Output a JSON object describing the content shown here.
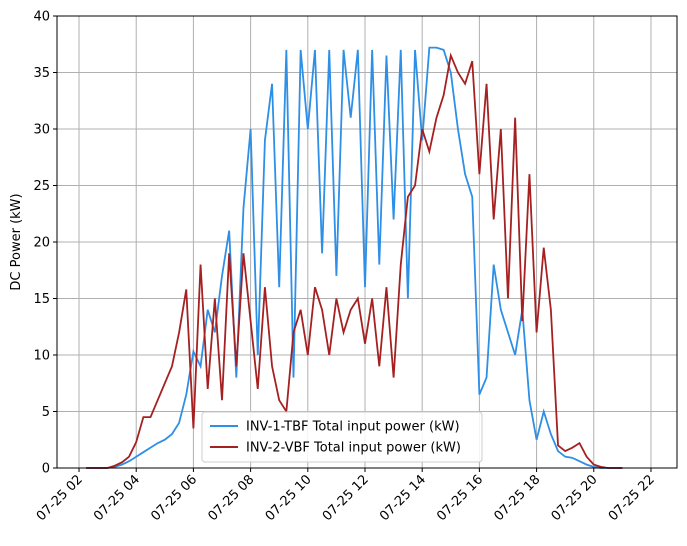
{
  "chart_data": {
    "type": "line",
    "ylabel": "DC Power (kW)",
    "x": [
      2.25,
      2.5,
      2.75,
      3,
      3.25,
      3.5,
      3.75,
      4,
      4.25,
      4.5,
      4.75,
      5,
      5.25,
      5.5,
      5.75,
      6,
      6.25,
      6.5,
      6.75,
      7,
      7.25,
      7.5,
      7.75,
      8,
      8.25,
      8.5,
      8.75,
      9,
      9.25,
      9.5,
      9.75,
      10,
      10.25,
      10.5,
      10.75,
      11,
      11.25,
      11.5,
      11.75,
      12,
      12.25,
      12.5,
      12.75,
      13,
      13.25,
      13.5,
      13.75,
      14,
      14.25,
      14.5,
      14.75,
      15,
      15.25,
      15.5,
      15.75,
      16,
      16.25,
      16.5,
      16.75,
      17,
      17.25,
      17.5,
      17.75,
      18,
      18.25,
      18.5,
      18.75,
      19,
      19.25,
      19.5,
      19.75,
      20,
      20.25,
      20.5,
      20.75,
      21
    ],
    "series": [
      {
        "name": "INV-1-TBF Total input power (kW)",
        "color": "#2d8fe6",
        "values": [
          0,
          0,
          0,
          0,
          0.1,
          0.3,
          0.6,
          1.0,
          1.4,
          1.8,
          2.2,
          2.5,
          3.0,
          4.0,
          6.5,
          10.3,
          9,
          14,
          12,
          17,
          21,
          8,
          23,
          30,
          10,
          29,
          34,
          16,
          37,
          8,
          37,
          30,
          37,
          19,
          37,
          17,
          37,
          31,
          37,
          16,
          37,
          18,
          36.5,
          22,
          37,
          15,
          37,
          29,
          37.2,
          37.2,
          37,
          35,
          30,
          26,
          24,
          6.5,
          8,
          18,
          14,
          12,
          10,
          14,
          6,
          2.5,
          5,
          3,
          1.5,
          1.0,
          0.9,
          0.6,
          0.3,
          0.1,
          0,
          0,
          0,
          0
        ]
      },
      {
        "name": "INV-2-VBF Total input power (kW)",
        "color": "#a52121",
        "values": [
          0,
          0,
          0,
          0,
          0.2,
          0.5,
          1.0,
          2.3,
          4.5,
          4.5,
          6,
          7.5,
          9,
          12,
          15.8,
          3.5,
          18,
          7,
          15,
          6,
          19,
          9,
          19,
          13,
          7,
          16,
          9,
          6,
          5,
          12,
          14,
          10,
          16,
          14,
          10,
          15,
          12,
          14,
          15,
          11,
          15,
          9,
          16,
          8,
          18,
          24,
          25,
          30,
          28,
          31,
          33,
          36.5,
          35,
          34,
          36,
          26,
          34,
          22,
          30,
          15,
          31,
          13,
          26,
          12,
          19.5,
          14,
          2,
          1.5,
          1.8,
          2.2,
          1,
          0.3,
          0.1,
          0,
          0,
          0
        ]
      }
    ],
    "xlim": [
      1.23,
      22.91
    ],
    "xticks": [
      {
        "value": 2,
        "label": "07-25 02"
      },
      {
        "value": 4,
        "label": "07-25 04"
      },
      {
        "value": 6,
        "label": "07-25 06"
      },
      {
        "value": 8,
        "label": "07-25 08"
      },
      {
        "value": 10,
        "label": "07-25 10"
      },
      {
        "value": 12,
        "label": "07-25 12"
      },
      {
        "value": 14,
        "label": "07-25 14"
      },
      {
        "value": 16,
        "label": "07-25 16"
      },
      {
        "value": 18,
        "label": "07-25 18"
      },
      {
        "value": 20,
        "label": "07-25 20"
      },
      {
        "value": 22,
        "label": "07-25 22"
      }
    ],
    "ylim": [
      0,
      40
    ],
    "yticks": [
      0,
      5,
      10,
      15,
      20,
      25,
      30,
      35,
      40
    ],
    "grid": true,
    "legend": "bottom"
  }
}
